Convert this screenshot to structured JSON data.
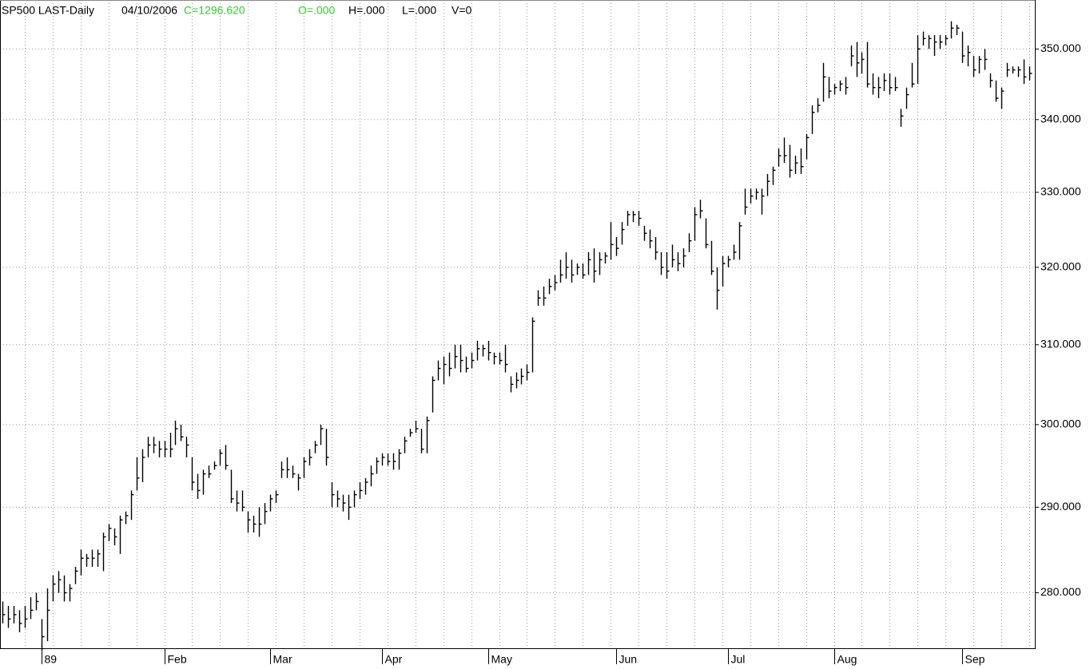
{
  "chart_data": {
    "type": "ohlc",
    "title": "SP500 LAST-Daily",
    "date": "04/10/2006",
    "readout": [
      "C=1296.620",
      "O=.000",
      "H=.000",
      "L=.000",
      "V=0"
    ],
    "readout_colors": [
      "#33cc33",
      "#33cc33",
      "#000000",
      "#000000",
      "#000000"
    ],
    "color": "#000000",
    "log": true,
    "grid": true,
    "ylim": [
      273.7,
      357.1
    ],
    "yticks": [
      {
        "value": 280,
        "label": "280.000"
      },
      {
        "value": 290,
        "label": "290.000"
      },
      {
        "value": 300,
        "label": "300.000"
      },
      {
        "value": 310,
        "label": "310.000"
      },
      {
        "value": 320,
        "label": "320.000"
      },
      {
        "value": 330,
        "label": "330.000"
      },
      {
        "value": 340,
        "label": "340.000"
      },
      {
        "value": 350,
        "label": "350.000"
      }
    ],
    "categories": [
      null,
      null,
      null,
      null,
      null,
      null,
      null,
      "89",
      null,
      null,
      null,
      null,
      null,
      null,
      null,
      null,
      null,
      null,
      null,
      null,
      null,
      null,
      null,
      null,
      null,
      null,
      null,
      null,
      null,
      "Feb",
      null,
      null,
      null,
      null,
      null,
      null,
      null,
      null,
      null,
      null,
      null,
      null,
      null,
      null,
      null,
      null,
      null,
      null,
      "Mar",
      null,
      null,
      null,
      null,
      null,
      null,
      null,
      null,
      null,
      null,
      null,
      null,
      null,
      null,
      null,
      null,
      null,
      null,
      null,
      "Apr",
      null,
      null,
      null,
      null,
      null,
      null,
      null,
      null,
      null,
      null,
      null,
      null,
      null,
      null,
      null,
      null,
      null,
      null,
      "May",
      null,
      null,
      null,
      null,
      null,
      null,
      null,
      null,
      null,
      null,
      null,
      null,
      null,
      null,
      null,
      null,
      null,
      null,
      null,
      null,
      null,
      null,
      "Jun",
      null,
      null,
      null,
      null,
      null,
      null,
      null,
      null,
      null,
      null,
      null,
      null,
      null,
      null,
      null,
      null,
      null,
      null,
      null,
      "Jul",
      null,
      null,
      null,
      null,
      null,
      null,
      null,
      null,
      null,
      null,
      null,
      null,
      null,
      null,
      null,
      null,
      null,
      null,
      "Aug",
      null,
      null,
      null,
      null,
      null,
      null,
      null,
      null,
      null,
      null,
      null,
      null,
      null,
      null,
      null,
      null,
      null,
      null,
      null,
      null,
      null,
      null,
      "Sep",
      null,
      null,
      null,
      null,
      null,
      null,
      null,
      null,
      null,
      null,
      null,
      null
    ],
    "high": [
      279,
      278.5,
      278.5,
      278,
      278.5,
      279.5,
      280,
      277,
      280.5,
      282,
      282.5,
      282,
      281,
      283,
      285,
      284.5,
      285,
      285,
      287,
      288,
      287.5,
      289,
      289.5,
      292,
      296,
      297,
      298.5,
      298.5,
      298,
      298,
      299,
      300.5,
      300,
      298.5,
      296,
      294,
      294.5,
      295,
      295.5,
      297,
      297.5,
      294.5,
      292,
      292,
      289.5,
      289,
      290,
      290.5,
      291.5,
      292,
      295.5,
      296,
      295,
      294,
      296,
      297,
      298,
      300,
      299.5,
      293,
      292,
      291.5,
      291.5,
      292,
      293,
      293.5,
      295,
      296,
      296.5,
      296.5,
      296.5,
      297,
      298.5,
      299.5,
      300.5,
      299.5,
      301,
      306,
      308,
      308.5,
      309,
      310,
      310,
      308.5,
      309,
      310.5,
      310,
      310.5,
      309,
      309,
      310,
      306,
      306.5,
      307,
      307.5,
      313.5,
      317,
      317.5,
      318.5,
      319,
      321,
      322,
      321,
      320.5,
      320.5,
      322,
      322.5,
      322,
      322,
      326,
      324,
      326,
      327.5,
      327.5,
      327.5,
      325.5,
      325,
      324,
      322,
      322,
      323,
      322,
      322.5,
      324.5,
      328,
      329,
      326.5,
      323.5,
      320,
      321.5,
      321.5,
      323,
      326,
      330.5,
      330.5,
      330.5,
      330.5,
      332.5,
      333.5,
      336,
      337.5,
      336.5,
      335,
      336,
      338,
      342,
      343,
      348,
      346,
      345,
      345.5,
      346,
      350.5,
      351,
      349.5,
      351,
      346.5,
      346,
      346.5,
      346.5,
      346,
      341.5,
      344.5,
      348,
      352,
      352.5,
      352,
      352,
      352,
      352,
      354,
      353.5,
      352.5,
      350.5,
      349,
      349,
      350,
      346.5,
      345.5,
      344.5,
      348,
      347.5,
      347.5,
      348.5,
      347.5
    ],
    "low": [
      276.5,
      276,
      276.5,
      275.5,
      276,
      277,
      278,
      273.5,
      274.5,
      279,
      280,
      279,
      279,
      281,
      282,
      283,
      283,
      283,
      282.5,
      286,
      285.5,
      284.5,
      288,
      288.5,
      292,
      293,
      296,
      296.5,
      296,
      296,
      296,
      297.5,
      298,
      296,
      292,
      291,
      291.5,
      293.5,
      294.5,
      295,
      294.5,
      290.5,
      289.5,
      289.5,
      287,
      287,
      286.5,
      288,
      289.5,
      290.5,
      293.5,
      293.5,
      293.5,
      292,
      293.5,
      295,
      296.5,
      297.5,
      295,
      290,
      290,
      289.5,
      288.5,
      290,
      291,
      291.5,
      292.5,
      294,
      295,
      295,
      294.5,
      294.5,
      296.5,
      298.5,
      299,
      296.5,
      296.5,
      301.5,
      305.5,
      305,
      306,
      307,
      306.5,
      306.5,
      307,
      308,
      308.5,
      308,
      307.5,
      307.5,
      306.5,
      304,
      304.5,
      305,
      305.5,
      306.5,
      315,
      315,
      316.5,
      317,
      318,
      318.5,
      318,
      319,
      318.5,
      319,
      318,
      319,
      320.5,
      321,
      321.5,
      323,
      325.5,
      326,
      325.5,
      323.5,
      322.5,
      321,
      319,
      318.5,
      320,
      319.5,
      320,
      322,
      323.5,
      326.5,
      322.5,
      319,
      314.5,
      317.5,
      320,
      321,
      321,
      327,
      328.5,
      329,
      327,
      329.5,
      331,
      333.5,
      334,
      332,
      332.5,
      332.5,
      334.5,
      338,
      341,
      342.5,
      343,
      343.5,
      344,
      343.5,
      347.5,
      346,
      346.5,
      344.5,
      343.5,
      343,
      344,
      343.5,
      344,
      339,
      341.5,
      344.5,
      345,
      350.5,
      350,
      349,
      350,
      350.5,
      351.5,
      352,
      348,
      347.5,
      346,
      346.5,
      347,
      344.5,
      342.5,
      341.5,
      346,
      346.5,
      346,
      345,
      345.5
    ],
    "close": [
      277.5,
      277,
      277.5,
      276.5,
      277,
      278,
      279,
      275,
      278,
      281,
      281.5,
      280,
      280.5,
      282.5,
      284,
      284,
      284,
      284.5,
      286.5,
      287.5,
      286.5,
      288.5,
      289,
      291.5,
      293.5,
      296,
      297.5,
      297.5,
      297,
      297,
      297,
      299.5,
      298.5,
      297.5,
      293,
      292,
      294,
      294,
      295,
      296.5,
      295,
      291,
      290.5,
      290,
      288.5,
      288,
      288,
      289.5,
      291,
      291.5,
      294.5,
      294.5,
      294,
      293.5,
      295.5,
      296,
      297.5,
      299.5,
      296,
      291.5,
      291,
      290.5,
      290,
      291.5,
      292,
      293,
      294,
      295.5,
      296,
      295.5,
      295.5,
      296.5,
      298,
      299,
      299.5,
      297,
      300.5,
      305.5,
      307,
      307.5,
      307,
      308.5,
      308,
      307,
      308,
      309.5,
      309.5,
      309,
      308.5,
      308,
      307.5,
      305,
      305.5,
      306,
      306.5,
      313,
      316,
      316,
      317.5,
      318,
      319,
      320,
      319,
      320,
      319,
      321,
      319.5,
      321,
      321.5,
      323,
      322.5,
      325,
      327,
      327,
      326.5,
      324.5,
      323.5,
      322,
      320,
      319.5,
      321,
      320.5,
      321.5,
      323.5,
      327,
      327.5,
      323,
      319.5,
      317,
      320.5,
      321,
      322,
      325.5,
      328,
      329.5,
      330,
      329.5,
      331.5,
      333,
      335,
      335,
      333,
      334,
      333.5,
      337.5,
      341,
      342,
      346,
      344,
      344.5,
      345,
      344.5,
      349,
      348,
      348.5,
      345,
      344.5,
      344.5,
      345.5,
      344.5,
      344.5,
      340.5,
      343.5,
      345,
      350,
      351.5,
      351.5,
      351,
      351,
      351.5,
      353,
      353,
      349,
      349.5,
      347,
      348.5,
      348.5,
      345.5,
      343,
      344,
      347,
      347,
      347,
      346,
      346.5
    ]
  }
}
